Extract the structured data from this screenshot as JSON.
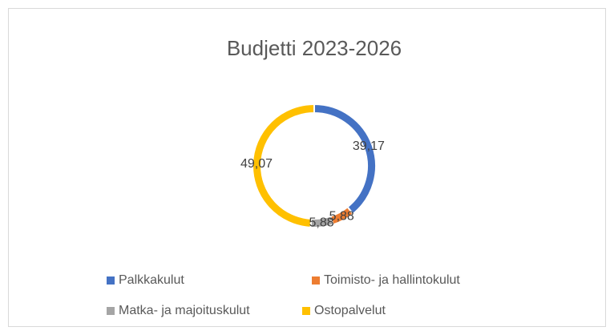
{
  "chart_data": {
    "type": "donut",
    "title": "Budjetti 2023-2026",
    "categories": [
      "Palkkakulut",
      "Toimisto- ja hallintokulut",
      "Matka- ja majoituskulut",
      "Ostopalvelut"
    ],
    "values": [
      39.17,
      5.88,
      5.88,
      49.07
    ],
    "value_labels": [
      "39,17",
      "5,88",
      "5,88",
      "49,07"
    ],
    "colors": [
      "#4472c4",
      "#ed7d31",
      "#a5a5a5",
      "#ffc000"
    ],
    "legend": "bottom"
  }
}
